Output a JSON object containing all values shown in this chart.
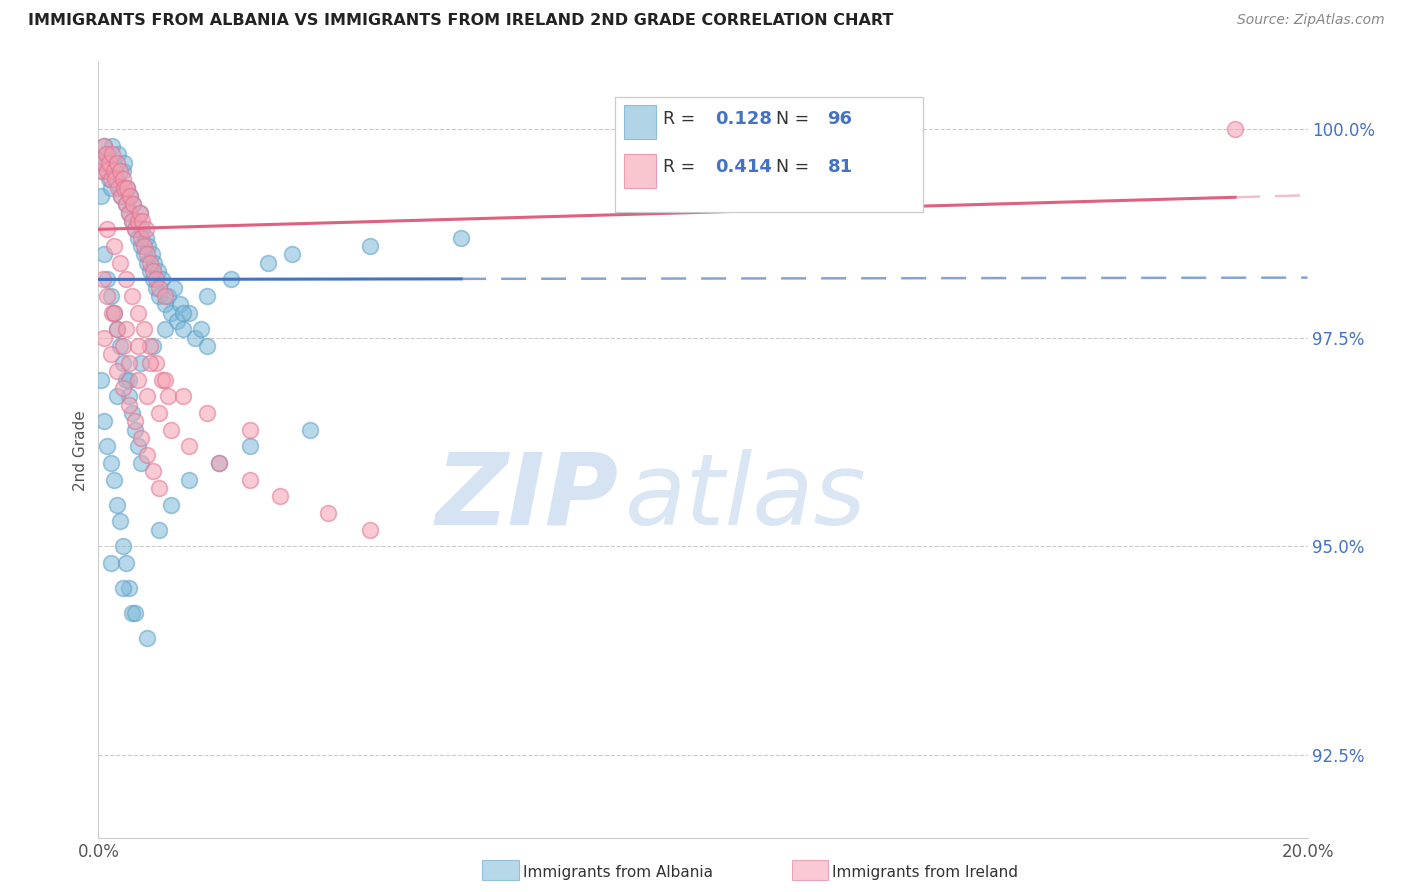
{
  "title": "IMMIGRANTS FROM ALBANIA VS IMMIGRANTS FROM IRELAND 2ND GRADE CORRELATION CHART",
  "source": "Source: ZipAtlas.com",
  "ylabel": "2nd Grade",
  "x_min": 0.0,
  "x_max": 20.0,
  "y_min": 91.5,
  "y_max": 100.8,
  "yticks": [
    92.5,
    95.0,
    97.5,
    100.0
  ],
  "xticks": [
    0.0,
    5.0,
    10.0,
    15.0,
    20.0
  ],
  "xtick_labels": [
    "0.0%",
    "",
    "",
    "",
    "20.0%"
  ],
  "ytick_labels": [
    "92.5%",
    "95.0%",
    "97.5%",
    "100.0%"
  ],
  "albania_color": "#7db8d8",
  "albania_edge": "#5a9ec8",
  "ireland_color": "#f5a0b0",
  "ireland_edge": "#e07090",
  "albania_line_color": "#4472c4",
  "ireland_line_color": "#e06080",
  "albania_R": 0.128,
  "albania_N": 96,
  "ireland_R": 0.414,
  "ireland_N": 81,
  "legend_albania": "Immigrants from Albania",
  "legend_ireland": "Immigrants from Ireland",
  "watermark_zip": "ZIP",
  "watermark_atlas": "atlas",
  "background_color": "#ffffff",
  "albania_scatter_x": [
    0.05,
    0.08,
    0.1,
    0.12,
    0.15,
    0.18,
    0.2,
    0.22,
    0.25,
    0.28,
    0.3,
    0.32,
    0.35,
    0.38,
    0.4,
    0.42,
    0.45,
    0.48,
    0.5,
    0.52,
    0.55,
    0.58,
    0.6,
    0.65,
    0.68,
    0.7,
    0.72,
    0.75,
    0.78,
    0.8,
    0.82,
    0.85,
    0.88,
    0.9,
    0.92,
    0.95,
    0.98,
    1.0,
    1.05,
    1.1,
    1.15,
    1.2,
    1.25,
    1.3,
    1.35,
    1.4,
    1.5,
    1.6,
    1.7,
    1.8,
    0.1,
    0.15,
    0.2,
    0.25,
    0.3,
    0.35,
    0.4,
    0.45,
    0.5,
    0.55,
    0.6,
    0.65,
    0.7,
    0.05,
    0.1,
    0.15,
    0.2,
    0.25,
    0.3,
    0.35,
    0.4,
    0.45,
    0.5,
    0.55,
    0.2,
    0.4,
    0.6,
    0.8,
    1.0,
    1.2,
    1.5,
    2.0,
    2.5,
    3.5,
    0.3,
    0.5,
    0.7,
    0.9,
    1.1,
    1.4,
    1.8,
    2.2,
    2.8,
    3.2,
    4.5,
    6.0
  ],
  "albania_scatter_y": [
    99.2,
    99.5,
    99.8,
    99.6,
    99.7,
    99.4,
    99.3,
    99.8,
    99.6,
    99.5,
    99.4,
    99.7,
    99.3,
    99.2,
    99.5,
    99.6,
    99.1,
    99.3,
    99.0,
    99.2,
    98.9,
    99.1,
    98.8,
    98.7,
    99.0,
    98.6,
    98.8,
    98.5,
    98.7,
    98.4,
    98.6,
    98.3,
    98.5,
    98.2,
    98.4,
    98.1,
    98.3,
    98.0,
    98.2,
    97.9,
    98.0,
    97.8,
    98.1,
    97.7,
    97.9,
    97.6,
    97.8,
    97.5,
    97.6,
    97.4,
    98.5,
    98.2,
    98.0,
    97.8,
    97.6,
    97.4,
    97.2,
    97.0,
    96.8,
    96.6,
    96.4,
    96.2,
    96.0,
    97.0,
    96.5,
    96.2,
    96.0,
    95.8,
    95.5,
    95.3,
    95.0,
    94.8,
    94.5,
    94.2,
    94.8,
    94.5,
    94.2,
    93.9,
    95.2,
    95.5,
    95.8,
    96.0,
    96.2,
    96.4,
    96.8,
    97.0,
    97.2,
    97.4,
    97.6,
    97.8,
    98.0,
    98.2,
    98.4,
    98.5,
    98.6,
    98.7
  ],
  "ireland_scatter_x": [
    0.05,
    0.08,
    0.1,
    0.12,
    0.15,
    0.18,
    0.2,
    0.22,
    0.25,
    0.28,
    0.3,
    0.32,
    0.35,
    0.38,
    0.4,
    0.42,
    0.45,
    0.48,
    0.5,
    0.52,
    0.55,
    0.58,
    0.6,
    0.65,
    0.68,
    0.7,
    0.72,
    0.75,
    0.78,
    0.8,
    0.85,
    0.9,
    0.95,
    1.0,
    1.1,
    0.15,
    0.25,
    0.35,
    0.45,
    0.55,
    0.65,
    0.75,
    0.85,
    0.95,
    1.05,
    1.15,
    0.1,
    0.2,
    0.3,
    0.4,
    0.5,
    0.6,
    0.7,
    0.8,
    0.9,
    1.0,
    0.08,
    0.15,
    0.22,
    0.3,
    0.4,
    0.5,
    0.65,
    0.8,
    1.0,
    1.2,
    1.5,
    2.0,
    2.5,
    3.0,
    3.8,
    4.5,
    0.25,
    0.45,
    0.65,
    0.85,
    1.1,
    1.4,
    1.8,
    2.5,
    18.8
  ],
  "ireland_scatter_y": [
    99.5,
    99.6,
    99.8,
    99.7,
    99.5,
    99.6,
    99.4,
    99.7,
    99.5,
    99.4,
    99.6,
    99.3,
    99.5,
    99.2,
    99.4,
    99.3,
    99.1,
    99.3,
    99.0,
    99.2,
    98.9,
    99.1,
    98.8,
    98.9,
    99.0,
    98.7,
    98.9,
    98.6,
    98.8,
    98.5,
    98.4,
    98.3,
    98.2,
    98.1,
    98.0,
    98.8,
    98.6,
    98.4,
    98.2,
    98.0,
    97.8,
    97.6,
    97.4,
    97.2,
    97.0,
    96.8,
    97.5,
    97.3,
    97.1,
    96.9,
    96.7,
    96.5,
    96.3,
    96.1,
    95.9,
    95.7,
    98.2,
    98.0,
    97.8,
    97.6,
    97.4,
    97.2,
    97.0,
    96.8,
    96.6,
    96.4,
    96.2,
    96.0,
    95.8,
    95.6,
    95.4,
    95.2,
    97.8,
    97.6,
    97.4,
    97.2,
    97.0,
    96.8,
    96.6,
    96.4,
    100.0
  ]
}
